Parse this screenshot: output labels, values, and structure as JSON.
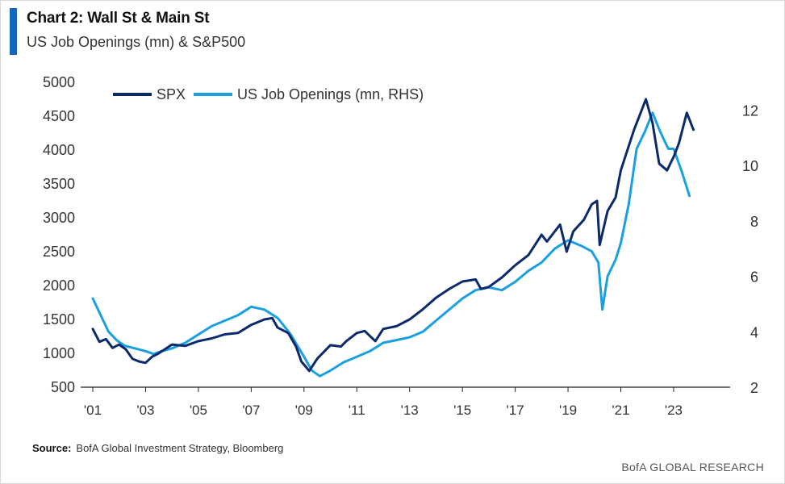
{
  "header": {
    "title": "Chart 2: Wall St & Main St",
    "subtitle": "US Job Openings (mn) & S&P500"
  },
  "footer": {
    "source_label": "Source:",
    "source_text": "BofA Global Investment Strategy, Bloomberg",
    "brand": "BofA GLOBAL RESEARCH"
  },
  "colors": {
    "spx": "#0b2a6b",
    "openings": "#1a9fe0",
    "accent": "#1565c0"
  },
  "chart_data": {
    "type": "line",
    "legend_position": "top-left",
    "grid": false,
    "x_ticks": [
      "'01",
      "'03",
      "'05",
      "'07",
      "'09",
      "'11",
      "'13",
      "'15",
      "'17",
      "'19",
      "'21",
      "'23"
    ],
    "x_tick_years": [
      2001,
      2003,
      2005,
      2007,
      2009,
      2011,
      2013,
      2015,
      2017,
      2019,
      2021,
      2023
    ],
    "xlim": [
      2001,
      2024.5
    ],
    "y_left": {
      "ylim": [
        500,
        5000
      ],
      "ticks": [
        500,
        1000,
        1500,
        2000,
        2500,
        3000,
        3500,
        4000,
        4500,
        5000
      ]
    },
    "y_right": {
      "ylim": [
        2,
        13
      ],
      "ticks": [
        2,
        4,
        6,
        8,
        10,
        12
      ]
    },
    "series": [
      {
        "name": "SPX",
        "axis": "left",
        "x": [
          2001.0,
          2001.25,
          2001.5,
          2001.75,
          2002.0,
          2002.25,
          2002.5,
          2002.75,
          2003.0,
          2003.25,
          2003.5,
          2004.0,
          2004.5,
          2005.0,
          2005.5,
          2006.0,
          2006.5,
          2007.0,
          2007.5,
          2007.8,
          2008.0,
          2008.4,
          2008.7,
          2008.9,
          2009.2,
          2009.5,
          2010.0,
          2010.4,
          2010.6,
          2011.0,
          2011.3,
          2011.7,
          2012.0,
          2012.5,
          2013.0,
          2013.5,
          2014.0,
          2014.5,
          2015.0,
          2015.5,
          2015.7,
          2016.0,
          2016.5,
          2017.0,
          2017.5,
          2018.0,
          2018.2,
          2018.7,
          2018.95,
          2019.2,
          2019.6,
          2019.9,
          2020.1,
          2020.2,
          2020.5,
          2020.8,
          2021.0,
          2021.5,
          2021.95,
          2022.2,
          2022.45,
          2022.75,
          2023.0,
          2023.2,
          2023.5,
          2023.6,
          2023.75
        ],
        "values": [
          1360,
          1170,
          1210,
          1080,
          1130,
          1060,
          920,
          880,
          860,
          950,
          1000,
          1130,
          1110,
          1180,
          1220,
          1280,
          1300,
          1420,
          1500,
          1520,
          1380,
          1300,
          1100,
          880,
          740,
          920,
          1120,
          1100,
          1180,
          1300,
          1330,
          1180,
          1360,
          1400,
          1500,
          1650,
          1820,
          1950,
          2060,
          2090,
          1950,
          1980,
          2120,
          2300,
          2450,
          2750,
          2650,
          2900,
          2500,
          2800,
          2970,
          3200,
          3250,
          2600,
          3100,
          3300,
          3700,
          4300,
          4750,
          4400,
          3800,
          3700,
          3900,
          4100,
          4550,
          4450,
          4300
        ]
      },
      {
        "name": "US Job Openings (mn, RHS)",
        "axis": "right",
        "x": [
          2001.0,
          2001.3,
          2001.6,
          2001.9,
          2002.2,
          2002.6,
          2003.0,
          2003.3,
          2003.6,
          2004.0,
          2004.5,
          2005.0,
          2005.5,
          2006.0,
          2006.5,
          2007.0,
          2007.5,
          2008.0,
          2008.5,
          2009.0,
          2009.3,
          2009.6,
          2010.0,
          2010.5,
          2011.0,
          2011.5,
          2012.0,
          2012.5,
          2013.0,
          2013.5,
          2014.0,
          2014.5,
          2015.0,
          2015.5,
          2016.0,
          2016.5,
          2017.0,
          2017.5,
          2018.0,
          2018.5,
          2019.0,
          2019.5,
          2019.9,
          2020.15,
          2020.3,
          2020.5,
          2020.8,
          2021.0,
          2021.3,
          2021.6,
          2021.9,
          2022.2,
          2022.5,
          2022.8,
          2023.0,
          2023.3,
          2023.6
        ],
        "values": [
          5.2,
          4.6,
          4.0,
          3.7,
          3.5,
          3.4,
          3.3,
          3.2,
          3.3,
          3.4,
          3.6,
          3.9,
          4.2,
          4.4,
          4.6,
          4.9,
          4.8,
          4.5,
          3.9,
          3.1,
          2.6,
          2.4,
          2.6,
          2.9,
          3.1,
          3.3,
          3.6,
          3.7,
          3.8,
          4.0,
          4.4,
          4.8,
          5.2,
          5.5,
          5.6,
          5.5,
          5.8,
          6.2,
          6.5,
          7.0,
          7.3,
          7.1,
          6.9,
          6.5,
          4.8,
          6.0,
          6.6,
          7.2,
          8.6,
          10.6,
          11.2,
          11.9,
          11.2,
          10.6,
          10.6,
          9.8,
          8.9
        ]
      }
    ]
  }
}
